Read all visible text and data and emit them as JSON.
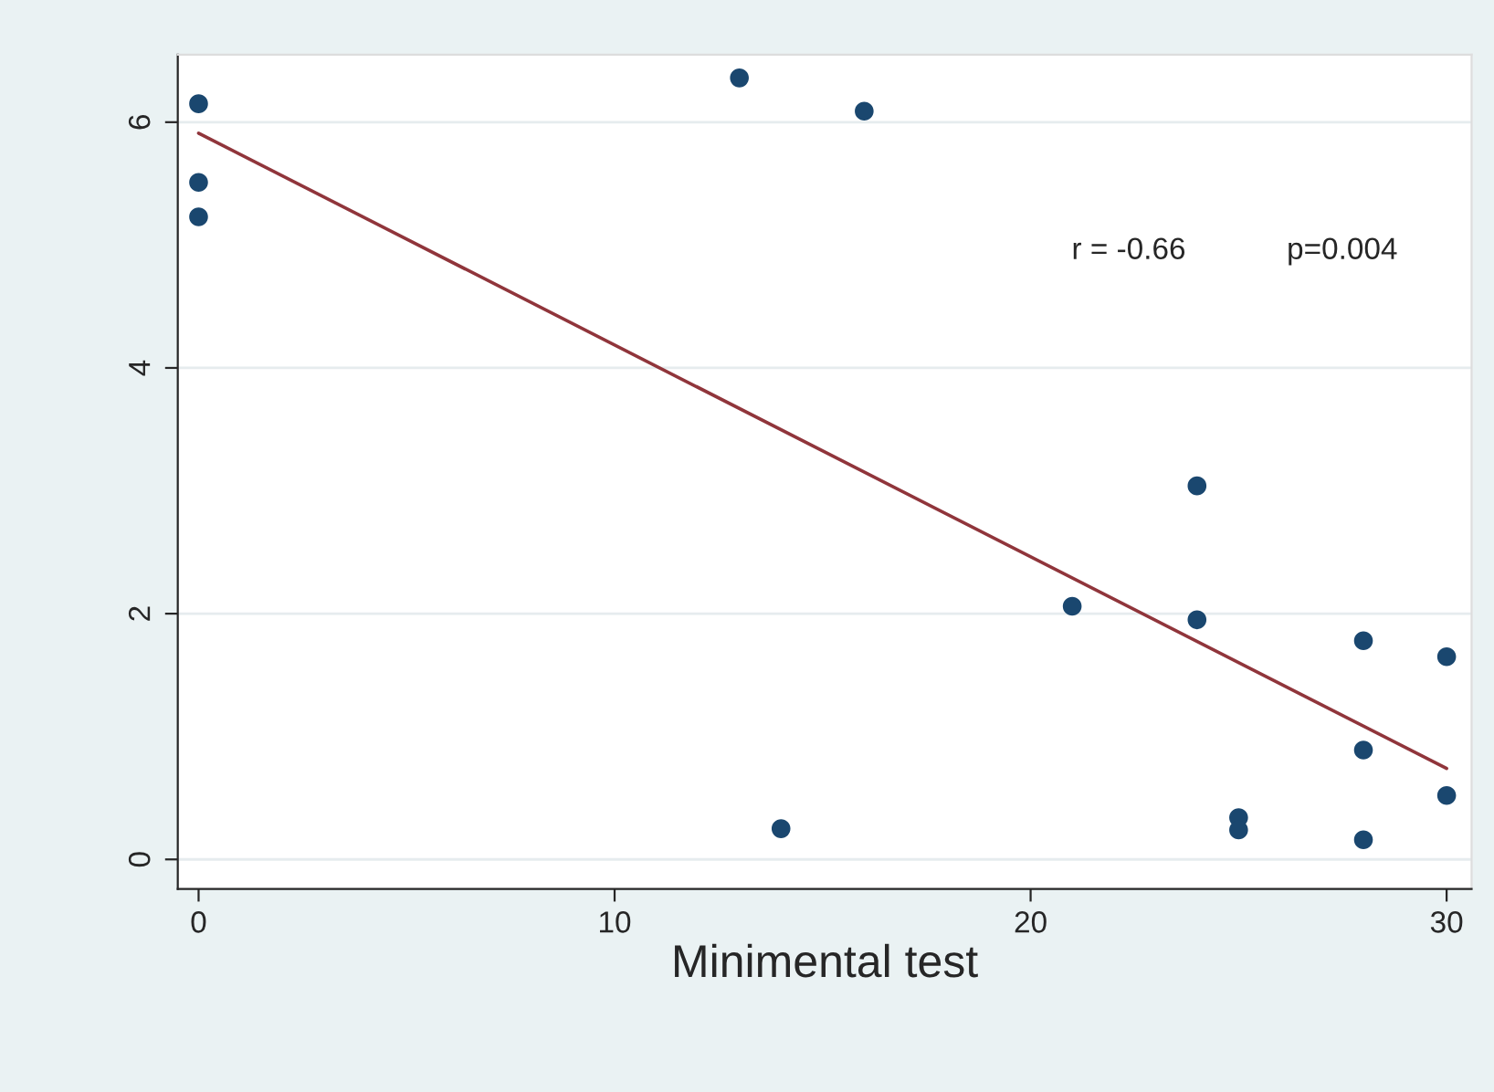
{
  "chart_data": {
    "type": "scatter",
    "xlabel": "Minimental test",
    "series": [
      {
        "marker": "circle",
        "color": "#1a476f",
        "x": [
          0,
          0,
          0,
          13,
          16,
          14,
          21,
          24,
          24,
          25,
          25,
          28,
          28,
          28,
          30,
          30
        ],
        "values": [
          6.15,
          5.51,
          5.23,
          6.36,
          6.09,
          0.25,
          2.06,
          3.04,
          1.95,
          0.34,
          0.24,
          1.78,
          0.89,
          0.16,
          1.65,
          0.52
        ]
      },
      {
        "type": "line",
        "color": "#90353b",
        "x": [
          0,
          30
        ],
        "values": [
          5.91,
          0.74
        ]
      }
    ],
    "annotations": [
      {
        "text": "r = -0.66"
      },
      {
        "text": "p=0.004"
      }
    ],
    "xlim": [
      -0.5,
      30.6
    ],
    "ylim": [
      -0.24,
      6.55
    ],
    "xticks": [
      0,
      10,
      20,
      30
    ],
    "yticks": [
      0,
      2,
      4,
      6
    ],
    "grid": "y"
  }
}
